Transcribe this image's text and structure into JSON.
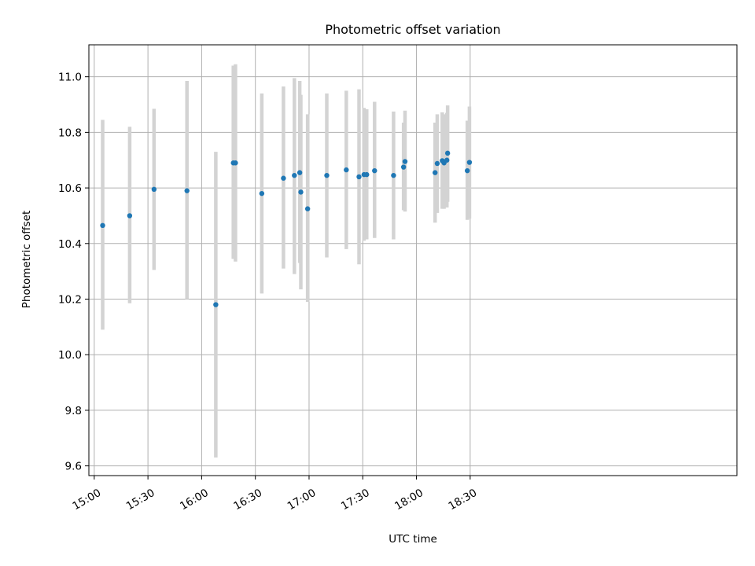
{
  "chart_data": {
    "type": "scatter",
    "title": "Photometric offset variation",
    "xlabel": "UTC time",
    "ylabel": "Photometric offset",
    "grid": true,
    "legend": "none",
    "xlim_minutes": [
      -3,
      359
    ],
    "ylim": [
      9.565,
      11.115
    ],
    "x_ticks": [
      {
        "minutes": 0,
        "label": "15:00"
      },
      {
        "minutes": 30,
        "label": "15:30"
      },
      {
        "minutes": 60,
        "label": "16:00"
      },
      {
        "minutes": 90,
        "label": "16:30"
      },
      {
        "minutes": 120,
        "label": "17:00"
      },
      {
        "minutes": 150,
        "label": "17:30"
      },
      {
        "minutes": 180,
        "label": "18:00"
      },
      {
        "minutes": 210,
        "label": "18:30"
      }
    ],
    "y_ticks": [
      {
        "value": 9.6,
        "label": "9.6"
      },
      {
        "value": 9.8,
        "label": "9.8"
      },
      {
        "value": 10.0,
        "label": "10.0"
      },
      {
        "value": 10.2,
        "label": "10.2"
      },
      {
        "value": 10.4,
        "label": "10.4"
      },
      {
        "value": 10.6,
        "label": "10.6"
      },
      {
        "value": 10.8,
        "label": "10.8"
      },
      {
        "value": 11.0,
        "label": "11.0"
      }
    ],
    "colors": {
      "point": "#1f77b4",
      "error_bar": "#d3d3d3"
    },
    "series": [
      {
        "name": "Photometric offset",
        "time_label_format": "HH:MM",
        "points": [
          {
            "t": 4.7,
            "y": 10.465,
            "err_low": 10.09,
            "err_high": 10.845
          },
          {
            "t": 19.8,
            "y": 10.5,
            "err_low": 10.185,
            "err_high": 10.82
          },
          {
            "t": 33.4,
            "y": 10.595,
            "err_low": 10.305,
            "err_high": 10.885
          },
          {
            "t": 51.8,
            "y": 10.59,
            "err_low": 10.2,
            "err_high": 10.985
          },
          {
            "t": 67.9,
            "y": 10.18,
            "err_low": 9.63,
            "err_high": 10.73
          },
          {
            "t": 77.7,
            "y": 10.69,
            "err_low": 10.345,
            "err_high": 11.04
          },
          {
            "t": 78.9,
            "y": 10.69,
            "err_low": 10.335,
            "err_high": 11.045
          },
          {
            "t": 93.6,
            "y": 10.58,
            "err_low": 10.22,
            "err_high": 10.94
          },
          {
            "t": 105.7,
            "y": 10.635,
            "err_low": 10.31,
            "err_high": 10.965
          },
          {
            "t": 111.8,
            "y": 10.645,
            "err_low": 10.29,
            "err_high": 10.995
          },
          {
            "t": 114.8,
            "y": 10.655,
            "err_low": 10.33,
            "err_high": 10.985
          },
          {
            "t": 115.4,
            "y": 10.585,
            "err_low": 10.235,
            "err_high": 10.935
          },
          {
            "t": 119.2,
            "y": 10.525,
            "err_low": 10.19,
            "err_high": 10.865
          },
          {
            "t": 129.9,
            "y": 10.645,
            "err_low": 10.35,
            "err_high": 10.94
          },
          {
            "t": 140.8,
            "y": 10.665,
            "err_low": 10.38,
            "err_high": 10.95
          },
          {
            "t": 147.9,
            "y": 10.64,
            "err_low": 10.325,
            "err_high": 10.955
          },
          {
            "t": 150.7,
            "y": 10.648,
            "err_low": 10.41,
            "err_high": 10.888
          },
          {
            "t": 152.2,
            "y": 10.648,
            "err_low": 10.415,
            "err_high": 10.883
          },
          {
            "t": 156.6,
            "y": 10.662,
            "err_low": 10.42,
            "err_high": 10.91
          },
          {
            "t": 167.2,
            "y": 10.645,
            "err_low": 10.415,
            "err_high": 10.875
          },
          {
            "t": 172.8,
            "y": 10.675,
            "err_low": 10.52,
            "err_high": 10.835
          },
          {
            "t": 173.6,
            "y": 10.695,
            "err_low": 10.515,
            "err_high": 10.878
          },
          {
            "t": 190.4,
            "y": 10.655,
            "err_low": 10.475,
            "err_high": 10.835
          },
          {
            "t": 191.6,
            "y": 10.688,
            "err_low": 10.51,
            "err_high": 10.865
          },
          {
            "t": 194.4,
            "y": 10.698,
            "err_low": 10.525,
            "err_high": 10.872
          },
          {
            "t": 195.4,
            "y": 10.69,
            "err_low": 10.525,
            "err_high": 10.865
          },
          {
            "t": 197.0,
            "y": 10.7,
            "err_low": 10.53,
            "err_high": 10.87
          },
          {
            "t": 197.4,
            "y": 10.725,
            "err_low": 10.55,
            "err_high": 10.897
          },
          {
            "t": 208.4,
            "y": 10.662,
            "err_low": 10.485,
            "err_high": 10.842
          },
          {
            "t": 209.6,
            "y": 10.692,
            "err_low": 10.49,
            "err_high": 10.893
          }
        ]
      }
    ]
  }
}
